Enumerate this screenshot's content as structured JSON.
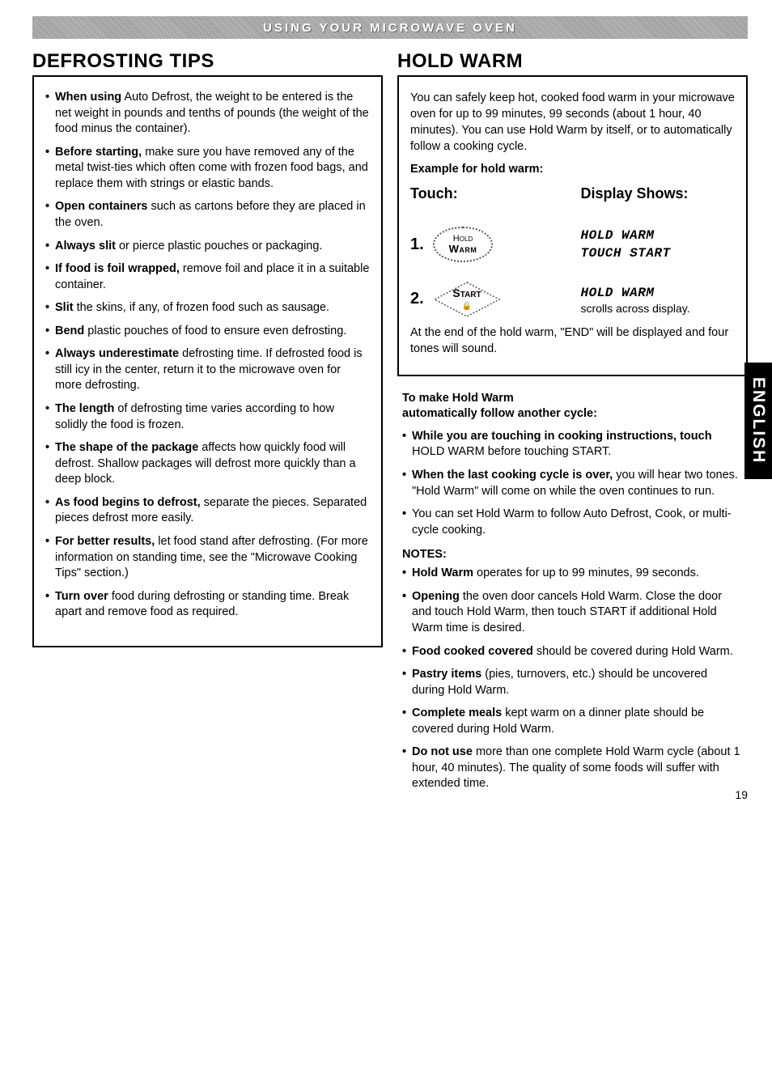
{
  "header_band": "USING YOUR MICROWAVE OVEN",
  "side_tab": "ENGLISH",
  "page_number": "19",
  "left": {
    "title": "DEFROSTING TIPS",
    "tips": [
      {
        "bold": "When using",
        "rest": " Auto Defrost, the weight to be entered is the net weight in pounds and tenths of pounds (the weight of the food minus the container)."
      },
      {
        "bold": "Before starting,",
        "rest": " make sure you have removed any of the metal twist-ties which often come with frozen food bags, and replace them with strings or elastic bands."
      },
      {
        "bold": "Open containers",
        "rest": " such as cartons before they are placed in the oven."
      },
      {
        "bold": "Always slit",
        "rest": " or pierce plastic pouches or packaging."
      },
      {
        "bold": "If food is foil wrapped,",
        "rest": " remove foil and place it in a suitable container."
      },
      {
        "bold": "Slit",
        "rest": " the skins, if any, of frozen food such as sausage."
      },
      {
        "bold": "Bend",
        "rest": " plastic pouches of food to ensure even defrosting."
      },
      {
        "bold": "Always underestimate",
        "rest": " defrosting time. If defrosted food is still icy in the center, return it to the microwave oven for more defrosting."
      },
      {
        "bold": "The length",
        "rest": " of defrosting time varies according to how solidly the food is frozen."
      },
      {
        "bold": "The shape of the package",
        "rest": " affects how quickly food will defrost. Shallow packages will defrost more quickly than a deep block."
      },
      {
        "bold": "As food begins to defrost,",
        "rest": " separate the pieces. Separated pieces defrost more easily."
      },
      {
        "bold": "For better results,",
        "rest": " let food stand after defrosting. (For more information on standing time, see the \"Microwave Cooking Tips\" section.)"
      },
      {
        "bold": "Turn over",
        "rest": " food during defrosting or standing time. Break apart and remove food as required."
      }
    ]
  },
  "right": {
    "title": "HOLD WARM",
    "intro": "You can safely keep hot, cooked food warm in your microwave oven for up to 99 minutes, 99 seconds (about 1 hour, 40 minutes). You can use Hold Warm by itself, or to automatically follow a cooking cycle.",
    "example_label": "Example for hold warm:",
    "touch_head": "Touch:",
    "display_head": "Display Shows:",
    "step1": {
      "num": "1.",
      "btn_l1": "Hold",
      "btn_l2": "Warm",
      "display_l1": "HOLD WARM",
      "display_l2": "TOUCH START"
    },
    "step2": {
      "num": "2.",
      "btn_label": "Start",
      "lock": "🔒",
      "display_l1": "HOLD WARM",
      "scroll": "scrolls across display."
    },
    "end_note": "At the end of the hold warm, \"END\" will be displayed and four tones will sound.",
    "auto_head_l1": "To make Hold Warm",
    "auto_head_l2": "automatically follow another cycle:",
    "auto_tips": [
      {
        "bold": "While you are touching in cooking instructions, touch",
        "rest": " HOLD WARM before touching START."
      },
      {
        "bold": "When the last cooking cycle is over,",
        "rest": " you will hear two tones. \"Hold Warm\" will come on while the oven continues to run."
      },
      {
        "bold": "",
        "rest": "You can set Hold Warm to follow Auto Defrost, Cook, or multi-cycle cooking."
      }
    ],
    "notes_head": "NOTES:",
    "notes": [
      {
        "bold": "Hold Warm",
        "rest": " operates for up to 99 minutes, 99 seconds."
      },
      {
        "bold": "Opening",
        "rest": " the oven door cancels Hold Warm. Close the door and touch Hold Warm, then touch START if additional Hold Warm time is desired."
      },
      {
        "bold": "Food cooked covered",
        "rest": " should be covered during Hold Warm."
      },
      {
        "bold": "Pastry items",
        "rest": " (pies, turnovers, etc.) should be uncovered during Hold Warm."
      },
      {
        "bold": "Complete meals",
        "rest": " kept warm on a dinner plate should be covered during Hold Warm."
      },
      {
        "bold": "Do not use",
        "rest": " more than one complete Hold Warm cycle (about 1 hour, 40 minutes). The quality of some foods will suffer with extended time."
      }
    ]
  }
}
